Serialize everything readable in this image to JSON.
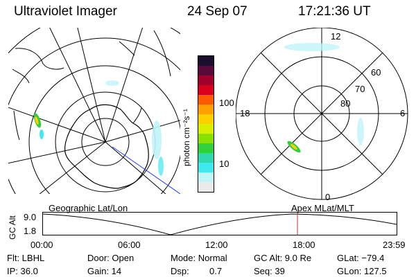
{
  "header": {
    "title": "Ultraviolet Imager",
    "date": "24 Sep 07",
    "time": "17:21:36 UT"
  },
  "colorbar": {
    "unit_label": "photon cm⁻²s⁻¹",
    "ticks": [
      "100",
      "10"
    ],
    "colors": [
      "#1a0d2e",
      "#5a0a3a",
      "#a0002a",
      "#d9001e",
      "#ff5a00",
      "#ff9f00",
      "#ffd000",
      "#d8f000",
      "#8ae000",
      "#30d040",
      "#30d8b0",
      "#40e8f0",
      "#bff4f8",
      "#eaeaea"
    ]
  },
  "geo_panel": {
    "label": "Geographic Lat/Lon"
  },
  "mag_panel": {
    "label": "Apex MLat/MLT",
    "mlt_labels": {
      "top": "12",
      "left": "18",
      "right": "6",
      "bottom": "0"
    },
    "lat_labels": [
      "60",
      "70",
      "80"
    ]
  },
  "altitude_plot": {
    "ylabel": "GC Alt",
    "yticks": [
      "9.0",
      "1.8"
    ],
    "xticks": [
      "00:00",
      "06:00",
      "12:00",
      "18:00",
      "23:59"
    ],
    "marker_color": "#c03030"
  },
  "footer": {
    "filter": "Flt: LBHL",
    "door": "Door: Open",
    "mode": "Mode: Normal",
    "gc_alt": "GC Alt: 9.0 Re",
    "glat": "GLat: −79.4",
    "ip": "IP: 36.0",
    "gain": "Gain: 14",
    "dsp_label": "Dsp:",
    "dsp_value": "0.7",
    "seq": "Seq: 39",
    "glon": "GLon: 127.5"
  }
}
